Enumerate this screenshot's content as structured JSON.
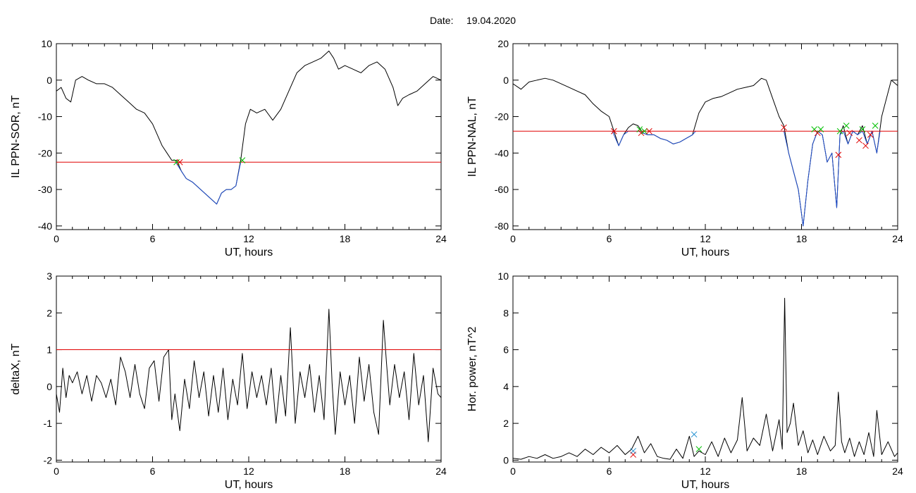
{
  "header": {
    "date_label": "Date:",
    "date_value": "19.04.2020"
  },
  "colors": {
    "trace": "#000000",
    "below_threshold": "#1f4fd0",
    "threshold": "#e00000",
    "marker_start": "#00c000",
    "marker_end": "#e00000",
    "marker_power": "#1f8fd0"
  },
  "chart_data": [
    {
      "id": "il-ppn-sor",
      "type": "line",
      "xlabel": "UT, hours",
      "ylabel": "IL PPN-SOR, nT",
      "xlim": [
        0,
        24
      ],
      "ylim": [
        -41,
        10
      ],
      "xticks": [
        0,
        6,
        12,
        18,
        24
      ],
      "yticks": [
        10,
        0,
        -10,
        -20,
        -30,
        -40
      ],
      "threshold": -22.5,
      "series": [
        {
          "color": "#000000",
          "x": [
            0,
            0.3,
            0.6,
            0.9,
            1.2,
            1.6,
            2.0,
            2.5,
            3.0,
            3.5,
            4.0,
            4.5,
            5.0,
            5.5,
            6.0,
            6.3,
            6.6,
            6.9,
            7.2,
            7.5,
            7.8,
            8.1,
            8.5,
            9.0,
            9.5,
            10.0,
            10.3,
            10.6,
            10.9,
            11.2,
            11.5,
            11.8,
            12.1,
            12.5,
            13.0,
            13.5,
            14.0,
            14.5,
            15.0,
            15.5,
            16.0,
            16.5,
            17.0,
            17.3,
            17.6,
            18.0,
            18.5,
            19.0,
            19.5,
            20.0,
            20.5,
            21.0,
            21.3,
            21.6,
            22.0,
            22.5,
            23.0,
            23.5,
            24.0
          ],
          "y": [
            -3,
            -2,
            -5,
            -6,
            0,
            1,
            0,
            -1,
            -1,
            -2,
            -4,
            -6,
            -8,
            -9,
            -12,
            -15,
            -18,
            -20,
            -22,
            -22,
            -25,
            -27,
            -28,
            -30,
            -32,
            -34,
            -31,
            -30,
            -30,
            -29,
            -22,
            -12,
            -8,
            -9,
            -8,
            -11,
            -8,
            -3,
            2,
            4,
            5,
            6,
            8,
            6,
            3,
            4,
            3,
            2,
            4,
            5,
            3,
            -2,
            -7,
            -5,
            -4,
            -3,
            -1,
            1,
            0
          ]
        },
        {
          "color": "#1f4fd0",
          "x": [
            7.45,
            7.8,
            8.1,
            8.5,
            9.0,
            9.5,
            10.0,
            10.3,
            10.6,
            10.9,
            11.2,
            11.5
          ],
          "y": [
            -22.5,
            -25,
            -27,
            -28,
            -30,
            -32,
            -34,
            -31,
            -30,
            -30,
            -29,
            -22.5
          ]
        }
      ],
      "markers": [
        {
          "x": 7.5,
          "y": -22.5,
          "color": "#00c000"
        },
        {
          "x": 7.7,
          "y": -22.5,
          "color": "#e00000"
        },
        {
          "x": 11.6,
          "y": -22,
          "color": "#00c000"
        }
      ]
    },
    {
      "id": "il-ppn-nal",
      "type": "line",
      "xlabel": "UT, hours",
      "ylabel": "IL PPN-NAL, nT",
      "xlim": [
        0,
        24
      ],
      "ylim": [
        -82,
        20
      ],
      "xticks": [
        0,
        6,
        12,
        18,
        24
      ],
      "yticks": [
        20,
        0,
        -20,
        -40,
        -60,
        -80
      ],
      "threshold": -28,
      "series": [
        {
          "color": "#000000",
          "x": [
            0,
            0.5,
            1.0,
            1.5,
            2.0,
            2.5,
            3.0,
            3.5,
            4.0,
            4.5,
            5.0,
            5.5,
            6.0,
            6.3,
            6.6,
            6.9,
            7.2,
            7.5,
            7.8,
            8.1,
            8.4,
            8.8,
            9.2,
            9.6,
            10.0,
            10.4,
            10.8,
            11.2,
            11.6,
            12.0,
            12.5,
            13.0,
            13.5,
            14.0,
            14.5,
            15.0,
            15.5,
            15.8,
            16.2,
            16.6,
            16.9,
            17.2,
            17.5,
            17.8,
            18.1,
            18.4,
            18.7,
            19.0,
            19.3,
            19.6,
            19.9,
            20.2,
            20.4,
            20.6,
            20.9,
            21.2,
            21.5,
            21.8,
            22.1,
            22.4,
            22.7,
            23.0,
            23.3,
            23.6,
            24.0
          ],
          "y": [
            -2,
            -5,
            -1,
            0,
            1,
            0,
            -2,
            -4,
            -6,
            -8,
            -13,
            -17,
            -20,
            -28,
            -36,
            -30,
            -26,
            -24,
            -25,
            -29,
            -30,
            -30,
            -32,
            -33,
            -35,
            -34,
            -32,
            -30,
            -18,
            -12,
            -10,
            -9,
            -7,
            -5,
            -4,
            -3,
            1,
            0,
            -10,
            -20,
            -25,
            -40,
            -50,
            -60,
            -80,
            -55,
            -35,
            -28,
            -30,
            -45,
            -40,
            -70,
            -30,
            -25,
            -35,
            -28,
            -30,
            -25,
            -35,
            -28,
            -40,
            -20,
            -10,
            0,
            -3
          ]
        },
        {
          "color": "#1f4fd0",
          "x": [
            6.2,
            6.6,
            6.9,
            7.2,
            7.5,
            7.8,
            8.1,
            8.4,
            8.8,
            9.2,
            9.6,
            10.0,
            10.4,
            10.8,
            11.2,
            11.4
          ],
          "y": [
            -28,
            -36,
            -30,
            -28,
            -28,
            -28,
            -29,
            -30,
            -30,
            -32,
            -33,
            -35,
            -34,
            -32,
            -30,
            -28
          ]
        },
        {
          "color": "#1f4fd0",
          "x": [
            16.9,
            17.2,
            17.5,
            17.8,
            18.1,
            18.4,
            18.7,
            19.0,
            19.3,
            19.6,
            19.9,
            20.2,
            20.4,
            20.6,
            20.9,
            21.2,
            21.5,
            21.8,
            22.1,
            22.4,
            22.7,
            22.9
          ],
          "y": [
            -28,
            -40,
            -50,
            -60,
            -80,
            -55,
            -35,
            -28,
            -30,
            -45,
            -40,
            -70,
            -30,
            -28,
            -35,
            -28,
            -30,
            -28,
            -35,
            -28,
            -40,
            -28
          ]
        }
      ],
      "markers": [
        {
          "x": 6.3,
          "y": -28,
          "color": "#e00000"
        },
        {
          "x": 7.9,
          "y": -27,
          "color": "#00c000"
        },
        {
          "x": 8.0,
          "y": -29,
          "color": "#e00000"
        },
        {
          "x": 8.2,
          "y": -28,
          "color": "#00c000"
        },
        {
          "x": 8.5,
          "y": -28,
          "color": "#e00000"
        },
        {
          "x": 16.9,
          "y": -26,
          "color": "#e00000"
        },
        {
          "x": 18.8,
          "y": -27,
          "color": "#00c000"
        },
        {
          "x": 19.0,
          "y": -29,
          "color": "#e00000"
        },
        {
          "x": 19.2,
          "y": -27,
          "color": "#00c000"
        },
        {
          "x": 20.3,
          "y": -41,
          "color": "#e00000"
        },
        {
          "x": 20.4,
          "y": -28,
          "color": "#00c000"
        },
        {
          "x": 20.8,
          "y": -25,
          "color": "#00c000"
        },
        {
          "x": 21.0,
          "y": -29,
          "color": "#e00000"
        },
        {
          "x": 21.6,
          "y": -33,
          "color": "#e00000"
        },
        {
          "x": 21.8,
          "y": -27,
          "color": "#00c000"
        },
        {
          "x": 22.0,
          "y": -36,
          "color": "#e00000"
        },
        {
          "x": 22.3,
          "y": -30,
          "color": "#e00000"
        },
        {
          "x": 22.6,
          "y": -25,
          "color": "#00c000"
        }
      ]
    },
    {
      "id": "delta-x",
      "type": "line",
      "xlabel": "UT, hours",
      "ylabel": "deltaX, nT",
      "xlim": [
        0,
        24
      ],
      "ylim": [
        -2.05,
        3
      ],
      "xticks": [
        0,
        6,
        12,
        18,
        24
      ],
      "yticks": [
        3,
        2,
        1,
        0,
        -1,
        -2
      ],
      "threshold": 1.0,
      "series": [
        {
          "color": "#000000",
          "x": [
            0,
            0.2,
            0.4,
            0.6,
            0.8,
            1.0,
            1.3,
            1.6,
            1.9,
            2.2,
            2.5,
            2.8,
            3.1,
            3.4,
            3.7,
            4.0,
            4.3,
            4.6,
            4.9,
            5.2,
            5.5,
            5.8,
            6.1,
            6.4,
            6.7,
            7.0,
            7.2,
            7.4,
            7.7,
            8.0,
            8.3,
            8.6,
            8.9,
            9.2,
            9.5,
            9.8,
            10.1,
            10.4,
            10.7,
            11.0,
            11.3,
            11.6,
            11.9,
            12.2,
            12.5,
            12.8,
            13.1,
            13.4,
            13.7,
            14.0,
            14.3,
            14.6,
            14.9,
            15.2,
            15.5,
            15.8,
            16.1,
            16.4,
            16.7,
            17.0,
            17.2,
            17.4,
            17.7,
            18.0,
            18.3,
            18.6,
            18.9,
            19.2,
            19.5,
            19.8,
            20.1,
            20.4,
            20.6,
            20.8,
            21.1,
            21.4,
            21.7,
            22.0,
            22.3,
            22.6,
            22.9,
            23.2,
            23.5,
            23.8,
            24.0
          ],
          "y": [
            -0.2,
            -0.7,
            0.5,
            -0.3,
            0.3,
            0.1,
            0.4,
            -0.2,
            0.3,
            -0.4,
            0.3,
            0.1,
            -0.3,
            0.2,
            -0.5,
            0.8,
            0.4,
            -0.3,
            0.6,
            -0.2,
            -0.6,
            0.5,
            0.7,
            -0.4,
            0.8,
            1.0,
            -0.9,
            -0.2,
            -1.2,
            0.2,
            -0.6,
            0.7,
            -0.3,
            0.4,
            -0.8,
            0.3,
            -0.7,
            0.5,
            -0.9,
            0.2,
            -0.5,
            0.9,
            -0.6,
            0.4,
            -0.3,
            0.3,
            -0.5,
            0.5,
            -1.0,
            0.3,
            -0.8,
            1.6,
            -1.0,
            0.4,
            -0.3,
            0.6,
            -0.7,
            0.3,
            -0.9,
            2.1,
            0.1,
            -1.3,
            0.4,
            -0.5,
            0.3,
            -1.0,
            0.8,
            -0.4,
            0.6,
            -0.7,
            -1.3,
            1.8,
            0.6,
            -0.5,
            0.6,
            -0.3,
            0.4,
            -0.9,
            0.9,
            -0.5,
            0.3,
            -1.5,
            0.5,
            -0.2,
            -0.3
          ]
        }
      ],
      "markers": []
    },
    {
      "id": "hor-power",
      "type": "line",
      "xlabel": "UT, hours",
      "ylabel": "Hor. power, nT^2",
      "xlim": [
        0,
        24
      ],
      "ylim": [
        -0.1,
        10
      ],
      "xticks": [
        0,
        6,
        12,
        18,
        24
      ],
      "yticks": [
        10,
        8,
        6,
        4,
        2,
        0
      ],
      "series": [
        {
          "color": "#000000",
          "x": [
            0,
            0.5,
            1.0,
            1.5,
            2.0,
            2.5,
            3.0,
            3.5,
            4.0,
            4.5,
            5.0,
            5.5,
            6.0,
            6.5,
            7.0,
            7.4,
            7.8,
            8.2,
            8.6,
            9.0,
            9.4,
            9.8,
            10.2,
            10.6,
            11.0,
            11.3,
            11.6,
            12.0,
            12.4,
            12.8,
            13.2,
            13.6,
            14.0,
            14.3,
            14.6,
            15.0,
            15.4,
            15.8,
            16.2,
            16.6,
            16.8,
            16.95,
            17.1,
            17.3,
            17.5,
            17.8,
            18.1,
            18.4,
            18.7,
            19.0,
            19.4,
            19.8,
            20.1,
            20.3,
            20.5,
            20.7,
            21.0,
            21.3,
            21.6,
            21.9,
            22.2,
            22.5,
            22.7,
            23.0,
            23.4,
            23.8,
            24.0
          ],
          "y": [
            0.1,
            0.05,
            0.2,
            0.1,
            0.3,
            0.1,
            0.2,
            0.4,
            0.2,
            0.6,
            0.3,
            0.7,
            0.4,
            0.8,
            0.3,
            0.6,
            1.3,
            0.4,
            0.9,
            0.2,
            0.1,
            0.05,
            0.6,
            0.1,
            1.3,
            0.2,
            0.5,
            0.3,
            1.0,
            0.2,
            1.2,
            0.4,
            1.1,
            3.4,
            0.5,
            1.2,
            0.8,
            2.5,
            0.5,
            2.2,
            0.6,
            8.8,
            1.5,
            2.0,
            3.1,
            0.8,
            1.6,
            0.4,
            1.1,
            0.3,
            1.3,
            0.5,
            0.8,
            3.7,
            1.0,
            0.4,
            1.2,
            0.2,
            1.0,
            0.3,
            1.5,
            0.2,
            2.7,
            0.3,
            1.0,
            0.2,
            0.4
          ]
        }
      ],
      "markers": [
        {
          "x": 7.5,
          "y": 0.3,
          "color": "#e00000"
        },
        {
          "x": 7.5,
          "y": 0.5,
          "color": "#1f8fd0"
        },
        {
          "x": 11.3,
          "y": 1.4,
          "color": "#1f8fd0"
        },
        {
          "x": 11.6,
          "y": 0.6,
          "color": "#00c000"
        }
      ]
    }
  ]
}
